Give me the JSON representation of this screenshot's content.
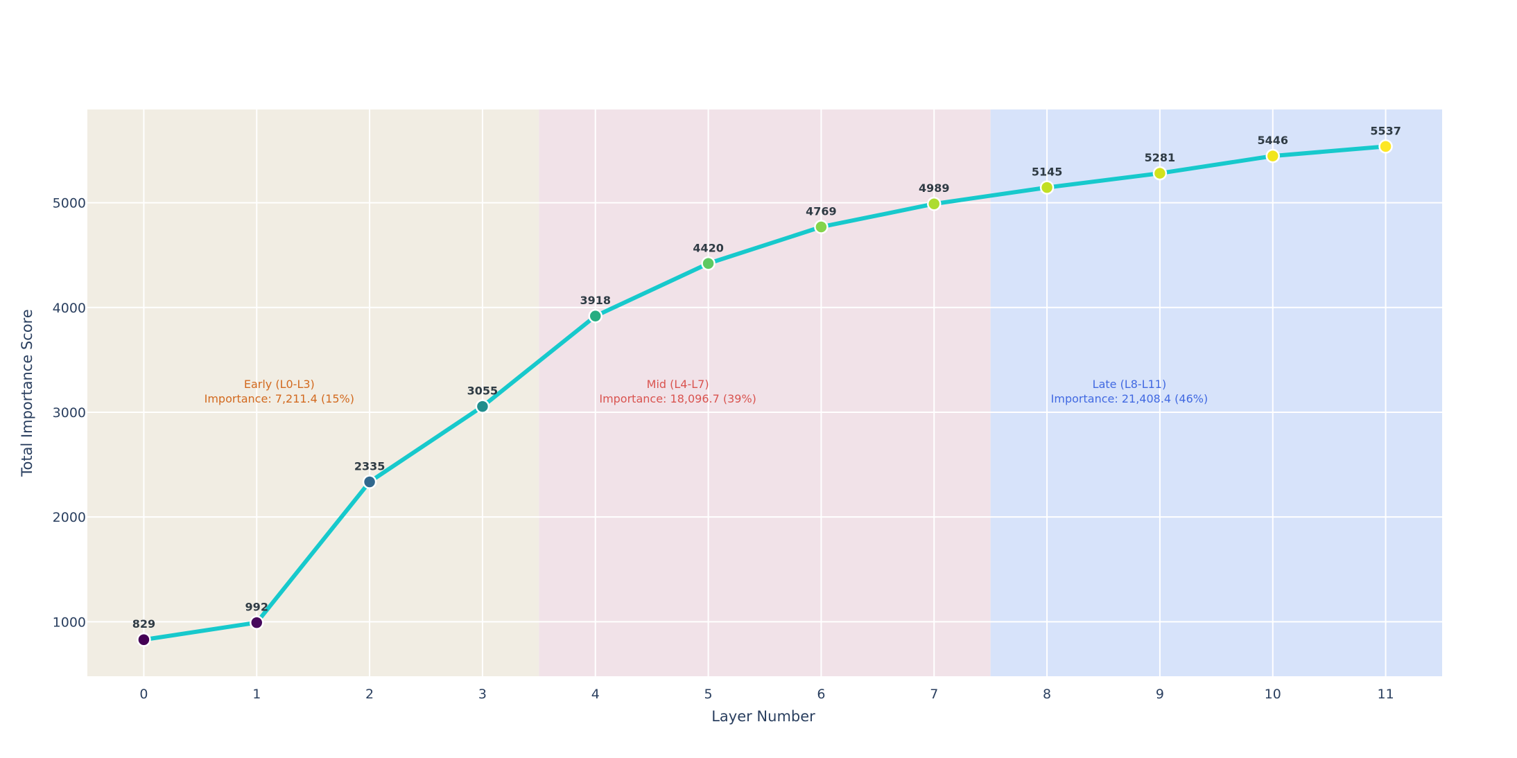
{
  "chart_data": {
    "type": "line",
    "title": "",
    "xlabel": "Layer Number",
    "ylabel": "Total Importance Score",
    "x": [
      0,
      1,
      2,
      3,
      4,
      5,
      6,
      7,
      8,
      9,
      10,
      11
    ],
    "x_tick_labels": [
      "0",
      "1",
      "2",
      "3",
      "4",
      "5",
      "6",
      "7",
      "8",
      "9",
      "10",
      "11"
    ],
    "y_ticks": [
      1000,
      2000,
      3000,
      4000,
      5000
    ],
    "y_tick_labels": [
      "1000",
      "2000",
      "3000",
      "4000",
      "5000"
    ],
    "xlim": [
      -0.5,
      11.5
    ],
    "ylim": [
      480,
      5890
    ],
    "grid": true,
    "series": [
      {
        "values": [
          829,
          992,
          2335,
          3055,
          3918,
          4420,
          4769,
          4989,
          5145,
          5281,
          5446,
          5537
        ],
        "point_labels": [
          "829",
          "992",
          "2335",
          "3055",
          "3918",
          "4420",
          "4769",
          "4989",
          "5145",
          "5281",
          "5446",
          "5537"
        ],
        "line_color": "#17c9cc",
        "marker_colors": [
          "#440154",
          "#46085c",
          "#31688e",
          "#218e8d",
          "#26ad81",
          "#5ec962",
          "#84d44b",
          "#addc30",
          "#c2df23",
          "#d2e21b",
          "#f1e51d",
          "#fde725"
        ]
      }
    ],
    "regions": [
      {
        "x_start": -0.5,
        "x_end": 3.5,
        "fill": "#f1ede3",
        "text_color": "#d2691e",
        "label_x": 1.2,
        "label_y": 3140,
        "line1": "Early (L0-L3)",
        "line2": "Importance: 7,211.4 (15%)"
      },
      {
        "x_start": 3.5,
        "x_end": 7.5,
        "fill": "#f1e2e8",
        "text_color": "#d9534f",
        "label_x": 4.73,
        "label_y": 3140,
        "line1": "Mid (L4-L7)",
        "line2": "Importance: 18,096.7 (39%)"
      },
      {
        "x_start": 7.5,
        "x_end": 11.5,
        "fill": "#d7e3fa",
        "text_color": "#4169e1",
        "label_x": 8.73,
        "label_y": 3140,
        "line1": "Late (L8-L11)",
        "line2": "Importance: 21,408.4 (46%)"
      }
    ]
  }
}
